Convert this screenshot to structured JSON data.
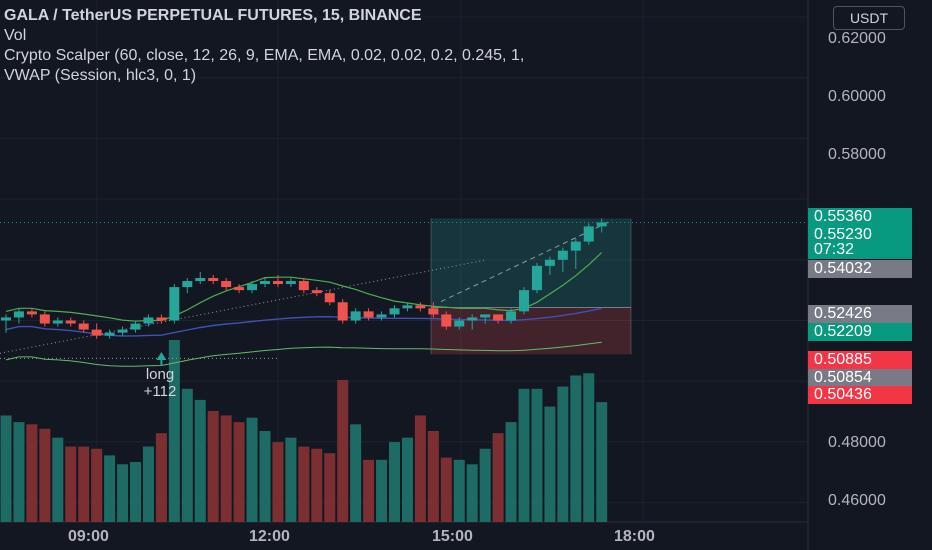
{
  "legend": {
    "title": "GALA / TetherUS PERPETUAL FUTURES, 15, BINANCE",
    "line2": "Vol",
    "line3": "Crypto Scalper (60, close, 12, 26, 9, EMA, EMA, 0.02, 0.02, 0.2, 0.245, 1,",
    "line4": "VWAP (Session, hlc3, 0, 1)"
  },
  "currency_button": "USDT",
  "price_axis": [
    "0.62000",
    "0.60000",
    "0.58000",
    "0.48000",
    "0.46000"
  ],
  "time_axis": [
    "09:00",
    "12:00",
    "15:00",
    "18:00"
  ],
  "price_tags": [
    {
      "label": "0.55360",
      "color": "#089981",
      "kind": "tag-0"
    },
    {
      "label": "0.55230",
      "color": "#089981",
      "kind": "tag-1"
    },
    {
      "label": "07:32",
      "color": "#089981",
      "kind": "tag-2"
    },
    {
      "label": "0.54032",
      "color": "#787b86",
      "kind": "tag-3"
    },
    {
      "label": "0.52426",
      "color": "#787b86",
      "kind": "tag-4"
    },
    {
      "label": "0.52209",
      "color": "#089981",
      "kind": "tag-5"
    },
    {
      "label": "0.50885",
      "color": "#f23645",
      "kind": "tag-6"
    },
    {
      "label": "0.50854",
      "color": "#787b86",
      "kind": "tag-7"
    },
    {
      "label": "0.50436",
      "color": "#f23645",
      "kind": "tag-8"
    }
  ],
  "signal": {
    "label": "long",
    "value": "+112"
  },
  "colors": {
    "up": "#26a69a",
    "down": "#ef5350",
    "background": "#131722",
    "vol_up": "#1e6b66",
    "vol_down": "#7c2f32"
  },
  "chart_data": {
    "type": "candlestick",
    "interval_minutes": 15,
    "candles": [
      {
        "o": 0.52,
        "h": 0.522,
        "l": 0.516,
        "c": 0.521
      },
      {
        "o": 0.521,
        "h": 0.524,
        "l": 0.519,
        "c": 0.523
      },
      {
        "o": 0.523,
        "h": 0.524,
        "l": 0.521,
        "c": 0.522
      },
      {
        "o": 0.522,
        "h": 0.523,
        "l": 0.518,
        "c": 0.519
      },
      {
        "o": 0.519,
        "h": 0.521,
        "l": 0.518,
        "c": 0.52
      },
      {
        "o": 0.52,
        "h": 0.521,
        "l": 0.518,
        "c": 0.519
      },
      {
        "o": 0.519,
        "h": 0.52,
        "l": 0.516,
        "c": 0.517
      },
      {
        "o": 0.517,
        "h": 0.519,
        "l": 0.514,
        "c": 0.515
      },
      {
        "o": 0.515,
        "h": 0.517,
        "l": 0.514,
        "c": 0.516
      },
      {
        "o": 0.516,
        "h": 0.518,
        "l": 0.515,
        "c": 0.517
      },
      {
        "o": 0.517,
        "h": 0.52,
        "l": 0.516,
        "c": 0.519
      },
      {
        "o": 0.519,
        "h": 0.522,
        "l": 0.518,
        "c": 0.521
      },
      {
        "o": 0.521,
        "h": 0.522,
        "l": 0.519,
        "c": 0.52
      },
      {
        "o": 0.52,
        "h": 0.532,
        "l": 0.519,
        "c": 0.531
      },
      {
        "o": 0.531,
        "h": 0.534,
        "l": 0.529,
        "c": 0.533
      },
      {
        "o": 0.533,
        "h": 0.536,
        "l": 0.532,
        "c": 0.534
      },
      {
        "o": 0.534,
        "h": 0.535,
        "l": 0.532,
        "c": 0.533
      },
      {
        "o": 0.533,
        "h": 0.534,
        "l": 0.53,
        "c": 0.531
      },
      {
        "o": 0.531,
        "h": 0.532,
        "l": 0.529,
        "c": 0.53
      },
      {
        "o": 0.53,
        "h": 0.533,
        "l": 0.529,
        "c": 0.532
      },
      {
        "o": 0.532,
        "h": 0.534,
        "l": 0.531,
        "c": 0.533
      },
      {
        "o": 0.533,
        "h": 0.535,
        "l": 0.531,
        "c": 0.532
      },
      {
        "o": 0.532,
        "h": 0.534,
        "l": 0.531,
        "c": 0.533
      },
      {
        "o": 0.533,
        "h": 0.534,
        "l": 0.529,
        "c": 0.53
      },
      {
        "o": 0.53,
        "h": 0.531,
        "l": 0.528,
        "c": 0.529
      },
      {
        "o": 0.529,
        "h": 0.53,
        "l": 0.525,
        "c": 0.526
      },
      {
        "o": 0.526,
        "h": 0.527,
        "l": 0.519,
        "c": 0.52
      },
      {
        "o": 0.52,
        "h": 0.524,
        "l": 0.519,
        "c": 0.523
      },
      {
        "o": 0.523,
        "h": 0.524,
        "l": 0.52,
        "c": 0.521
      },
      {
        "o": 0.521,
        "h": 0.523,
        "l": 0.52,
        "c": 0.522
      },
      {
        "o": 0.522,
        "h": 0.525,
        "l": 0.521,
        "c": 0.524
      },
      {
        "o": 0.524,
        "h": 0.526,
        "l": 0.523,
        "c": 0.525
      },
      {
        "o": 0.525,
        "h": 0.526,
        "l": 0.523,
        "c": 0.524
      },
      {
        "o": 0.524,
        "h": 0.526,
        "l": 0.521,
        "c": 0.522
      },
      {
        "o": 0.522,
        "h": 0.523,
        "l": 0.517,
        "c": 0.518
      },
      {
        "o": 0.518,
        "h": 0.521,
        "l": 0.517,
        "c": 0.52
      },
      {
        "o": 0.52,
        "h": 0.522,
        "l": 0.517,
        "c": 0.521
      },
      {
        "o": 0.521,
        "h": 0.522,
        "l": 0.519,
        "c": 0.522
      },
      {
        "o": 0.522,
        "h": 0.522,
        "l": 0.519,
        "c": 0.52
      },
      {
        "o": 0.52,
        "h": 0.524,
        "l": 0.519,
        "c": 0.523
      },
      {
        "o": 0.523,
        "h": 0.531,
        "l": 0.522,
        "c": 0.53
      },
      {
        "o": 0.53,
        "h": 0.539,
        "l": 0.529,
        "c": 0.538
      },
      {
        "o": 0.538,
        "h": 0.541,
        "l": 0.535,
        "c": 0.54
      },
      {
        "o": 0.54,
        "h": 0.544,
        "l": 0.536,
        "c": 0.543
      },
      {
        "o": 0.543,
        "h": 0.547,
        "l": 0.537,
        "c": 0.546
      },
      {
        "o": 0.546,
        "h": 0.552,
        "l": 0.545,
        "c": 0.551
      },
      {
        "o": 0.551,
        "h": 0.5536,
        "l": 0.549,
        "c": 0.5523
      }
    ],
    "volume": [
      0.48,
      0.45,
      0.44,
      0.42,
      0.38,
      0.34,
      0.34,
      0.33,
      0.3,
      0.26,
      0.27,
      0.34,
      0.4,
      0.82,
      0.6,
      0.55,
      0.5,
      0.48,
      0.45,
      0.47,
      0.41,
      0.36,
      0.38,
      0.34,
      0.33,
      0.31,
      0.64,
      0.44,
      0.28,
      0.28,
      0.36,
      0.38,
      0.48,
      0.41,
      0.29,
      0.28,
      0.26,
      0.33,
      0.4,
      0.45,
      0.6,
      0.6,
      0.52,
      0.61,
      0.66,
      0.67,
      0.54
    ],
    "y_range": [
      0.4536,
      0.6256
    ],
    "position": {
      "entry": 0.52426,
      "target": 0.5536,
      "stop": 0.50885
    },
    "price_line": 0.5523
  }
}
